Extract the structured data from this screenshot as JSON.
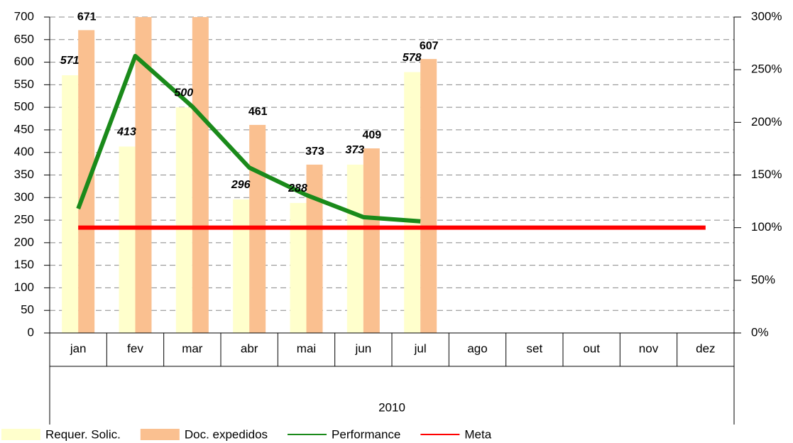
{
  "chart_data": {
    "type": "bar",
    "categories": [
      "jan",
      "fev",
      "mar",
      "abr",
      "mai",
      "jun",
      "jul",
      "ago",
      "set",
      "out",
      "nov",
      "dez"
    ],
    "group_label": "2010",
    "series": [
      {
        "name": "Requer. Solic.",
        "type": "bar",
        "color": "#ffffcc",
        "values": [
          571,
          413,
          500,
          296,
          288,
          373,
          578,
          null,
          null,
          null,
          null,
          null
        ],
        "value_labels": [
          "571",
          "413",
          "500",
          "296",
          "288",
          "373",
          "578",
          null,
          null,
          null,
          null,
          null
        ]
      },
      {
        "name": "Doc. expedidos",
        "type": "bar",
        "color": "#fac090",
        "values": [
          671,
          700,
          700,
          461,
          373,
          409,
          607,
          null,
          null,
          null,
          null,
          null
        ],
        "value_labels": [
          "671",
          null,
          null,
          "461",
          "373",
          "409",
          "607",
          null,
          null,
          null,
          null,
          null
        ]
      },
      {
        "name": "Performance",
        "type": "line",
        "axis": "y2",
        "color": "#1a8a1a",
        "values": [
          118,
          263,
          215,
          157,
          131,
          110,
          106,
          null,
          null,
          null,
          null,
          null
        ]
      },
      {
        "name": "Meta",
        "type": "line",
        "axis": "y2",
        "color": "#ff0000",
        "values": [
          100,
          100,
          100,
          100,
          100,
          100,
          100,
          100,
          100,
          100,
          100,
          100
        ]
      }
    ],
    "ylim": [
      0,
      700
    ],
    "yticks": [
      0,
      50,
      100,
      150,
      200,
      250,
      300,
      350,
      400,
      450,
      500,
      550,
      600,
      650,
      700
    ],
    "y2lim": [
      0,
      300
    ],
    "y2ticks": [
      {
        "value": 0,
        "label": "0%"
      },
      {
        "value": 50,
        "label": "50%"
      },
      {
        "value": 100,
        "label": "100%"
      },
      {
        "value": 150,
        "label": "150%"
      },
      {
        "value": 200,
        "label": "200%"
      },
      {
        "value": 250,
        "label": "250%"
      },
      {
        "value": 300,
        "label": "300%"
      }
    ],
    "grid": true,
    "legend": "bottom"
  }
}
